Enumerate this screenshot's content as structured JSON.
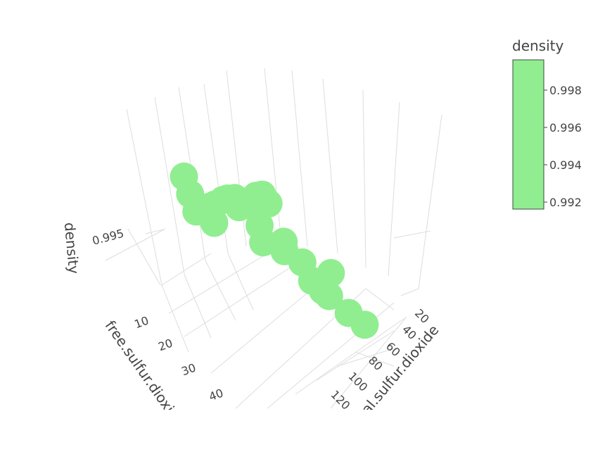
{
  "chart_data": {
    "type": "scatter3d",
    "x_axis": {
      "label": "free.sulfur.dioxide",
      "ticks": [
        "10",
        "20",
        "30",
        "40"
      ]
    },
    "y_axis": {
      "label": "total.sulfur.dioxide",
      "ticks": [
        "20",
        "40",
        "60",
        "80",
        "100",
        "120"
      ]
    },
    "z_axis": {
      "label": "density",
      "ticks": [
        "0.995"
      ]
    },
    "colorbar": {
      "title": "density",
      "ticks": [
        "0.998",
        "0.996",
        "0.994",
        "0.992"
      ],
      "color": "#90ee90"
    },
    "marker_color": "#90ee90",
    "points": [
      {
        "free": 10,
        "total": 48,
        "density": 0.9963
      },
      {
        "free": 6,
        "total": 18,
        "density": 0.9965
      },
      {
        "free": 15,
        "total": 55,
        "density": 0.9969
      },
      {
        "free": 9,
        "total": 32,
        "density": 0.9958
      },
      {
        "free": 14,
        "total": 44,
        "density": 0.9972
      },
      {
        "free": 7,
        "total": 22,
        "density": 0.9952
      },
      {
        "free": 12,
        "total": 37,
        "density": 0.9968
      },
      {
        "free": 16,
        "total": 62,
        "density": 0.9974
      },
      {
        "free": 11,
        "total": 30,
        "density": 0.9949
      },
      {
        "free": 13,
        "total": 52,
        "density": 0.9961
      },
      {
        "free": 8,
        "total": 40,
        "density": 0.9956
      },
      {
        "free": 18,
        "total": 70,
        "density": 0.997
      },
      {
        "free": 20,
        "total": 58,
        "density": 0.9945
      },
      {
        "free": 22,
        "total": 76,
        "density": 0.9938
      },
      {
        "free": 5,
        "total": 14,
        "density": 0.9978
      },
      {
        "free": 17,
        "total": 66,
        "density": 0.9976
      },
      {
        "free": 24,
        "total": 90,
        "density": 0.993
      },
      {
        "free": 26,
        "total": 95,
        "density": 0.9918
      },
      {
        "free": 30,
        "total": 102,
        "density": 0.9912
      },
      {
        "free": 28,
        "total": 110,
        "density": 0.9925
      },
      {
        "free": 19,
        "total": 84,
        "density": 0.9934
      },
      {
        "free": 25,
        "total": 110,
        "density": 0.9905
      },
      {
        "free": 32,
        "total": 118,
        "density": 0.9899
      },
      {
        "free": 36,
        "total": 124,
        "density": 0.9896
      },
      {
        "free": 15,
        "total": 96,
        "density": 0.9928
      },
      {
        "free": 12,
        "total": 78,
        "density": 0.9939
      }
    ]
  }
}
